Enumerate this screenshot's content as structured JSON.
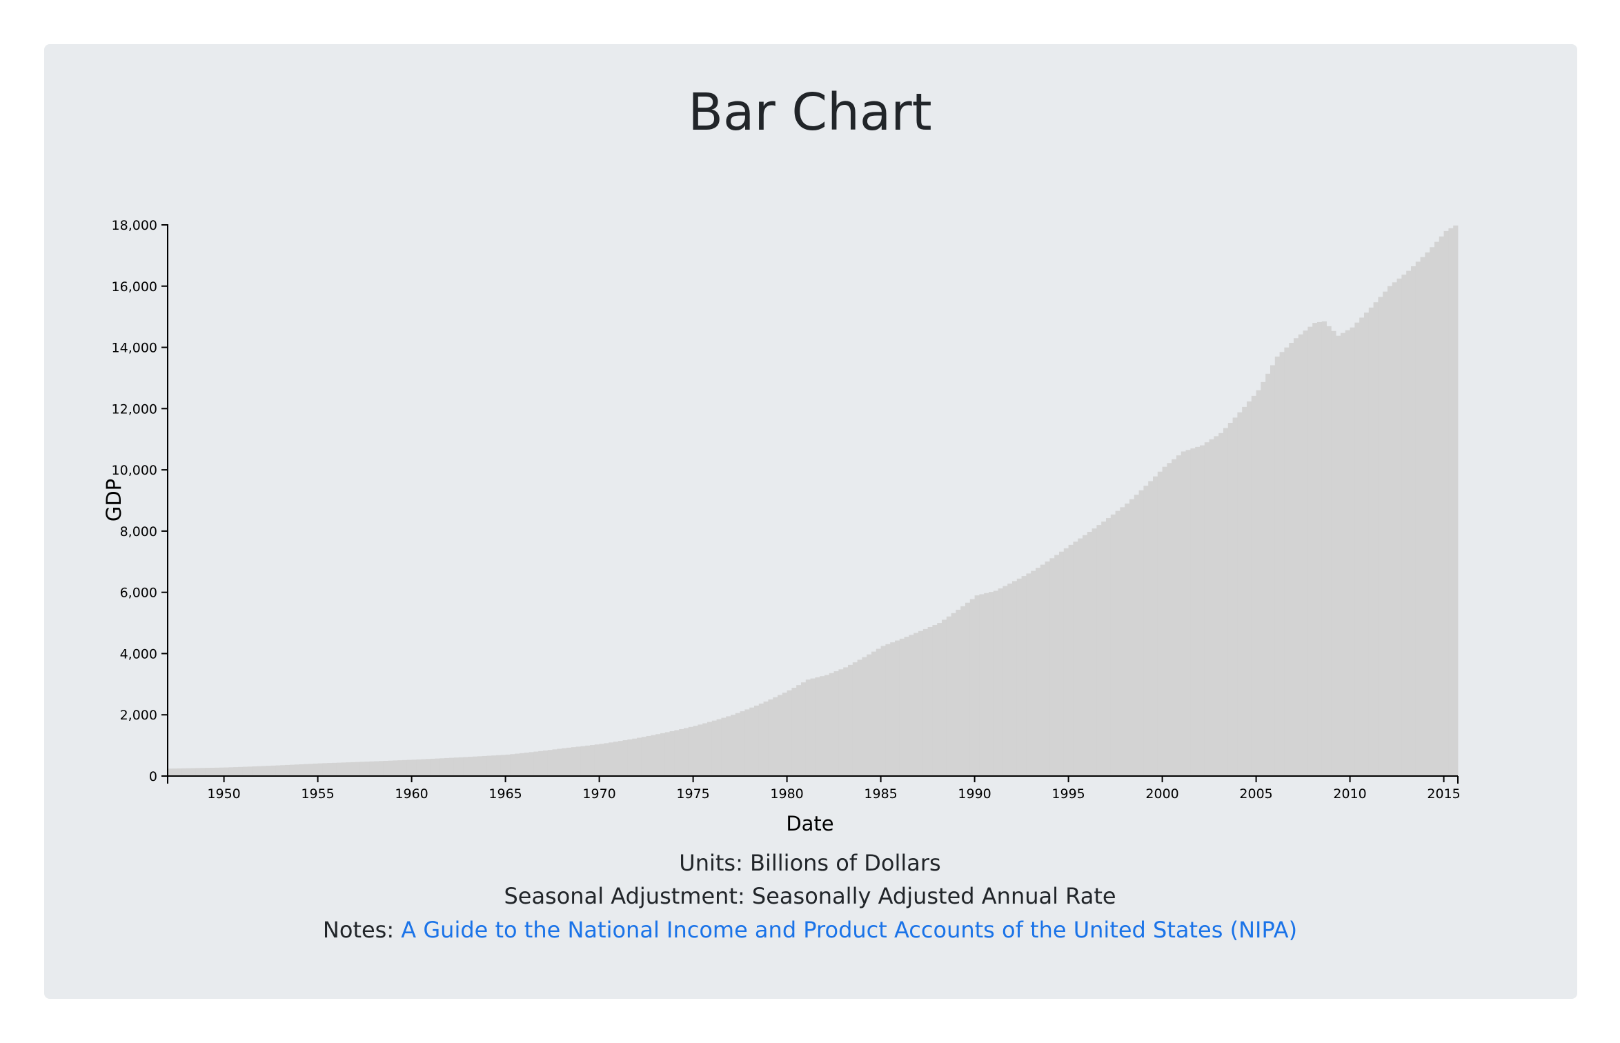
{
  "page": {
    "title": "Bar Chart",
    "units_text": "Units: Billions of Dollars",
    "seasonal_text": "Seasonal Adjustment: Seasonally Adjusted Annual Rate",
    "notes_label": "Notes: ",
    "notes_link_text": "A Guide to the National Income and Product Accounts of the United States (NIPA)"
  },
  "colors": {
    "card_background": "#e8ebee",
    "bar_fill": "#d3d3d3",
    "link": "#1a73e8",
    "axis": "#000000"
  },
  "chart_data": {
    "type": "bar",
    "title": "Bar Chart",
    "xlabel": "Date",
    "ylabel": "GDP",
    "ylim": [
      0,
      18000
    ],
    "xlim": [
      1947.0,
      2015.75
    ],
    "yticks": [
      "0",
      "2,000",
      "4,000",
      "6,000",
      "8,000",
      "10,000",
      "12,000",
      "14,000",
      "16,000",
      "18,000"
    ],
    "xticks": [
      "1950",
      "1955",
      "1960",
      "1965",
      "1970",
      "1975",
      "1980",
      "1985",
      "1990",
      "1995",
      "2000",
      "2005",
      "2010",
      "2015"
    ],
    "bar_period_years": 0.25,
    "series": [
      {
        "name": "GDP",
        "x_start": 1947.0,
        "keyframes": [
          [
            1947.0,
            243
          ],
          [
            1950.0,
            280
          ],
          [
            1955.0,
            415
          ],
          [
            1960.0,
            535
          ],
          [
            1965.0,
            700
          ],
          [
            1968.0,
            910
          ],
          [
            1970.0,
            1050
          ],
          [
            1972.0,
            1250
          ],
          [
            1975.0,
            1640
          ],
          [
            1977.0,
            2000
          ],
          [
            1980.0,
            2800
          ],
          [
            1981.0,
            3150
          ],
          [
            1982.0,
            3300
          ],
          [
            1983.0,
            3550
          ],
          [
            1985.0,
            4250
          ],
          [
            1988.0,
            5000
          ],
          [
            1990.0,
            5900
          ],
          [
            1991.0,
            6050
          ],
          [
            1993.0,
            6700
          ],
          [
            1995.0,
            7550
          ],
          [
            1998.0,
            8900
          ],
          [
            2000.0,
            10100
          ],
          [
            2001.0,
            10600
          ],
          [
            2002.0,
            10800
          ],
          [
            2003.0,
            11200
          ],
          [
            2005.0,
            12600
          ],
          [
            2006.0,
            13700
          ],
          [
            2007.0,
            14300
          ],
          [
            2008.0,
            14800
          ],
          [
            2008.5,
            14850
          ],
          [
            2009.25,
            14380
          ],
          [
            2010.0,
            14650
          ],
          [
            2011.0,
            15300
          ],
          [
            2012.0,
            16000
          ],
          [
            2013.0,
            16500
          ],
          [
            2014.0,
            17100
          ],
          [
            2015.0,
            17800
          ],
          [
            2015.75,
            18070
          ]
        ]
      }
    ]
  }
}
